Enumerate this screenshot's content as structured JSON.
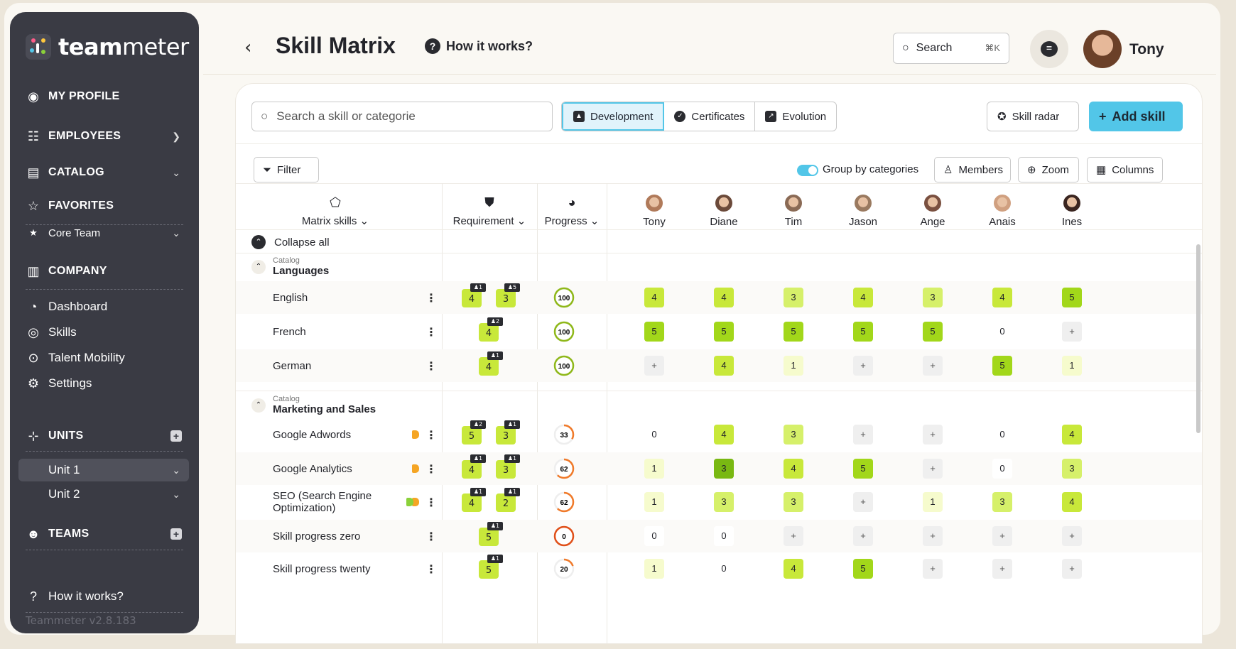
{
  "brand": {
    "name_bold": "team",
    "name_light": "meter",
    "version": "Teammeter v2.8.183"
  },
  "sidebar": {
    "my_profile": "MY PROFILE",
    "employees": "EMPLOYEES",
    "catalog": "CATALOG",
    "favorites": "FAVORITES",
    "core_team": "Core Team",
    "company": "COMPANY",
    "dashboard": "Dashboard",
    "skills": "Skills",
    "talent_mobility": "Talent Mobility",
    "settings": "Settings",
    "units": "UNITS",
    "unit1": "Unit 1",
    "unit2": "Unit 2",
    "teams": "TEAMS",
    "how_it_works": "How it works?"
  },
  "header": {
    "title": "Skill Matrix",
    "help": "How it works?",
    "search": "Search",
    "shortcut": "⌘K",
    "user": "Tony"
  },
  "toolbar": {
    "search_placeholder": "Search a skill or categorie",
    "tab_development": "Development",
    "tab_certificates": "Certificates",
    "tab_evolution": "Evolution",
    "skill_radar": "Skill radar",
    "add_skill": "Add skill"
  },
  "subtoolbar": {
    "filter": "Filter",
    "group_by": "Group by categories",
    "members": "Members",
    "zoom": "Zoom",
    "columns": "Columns"
  },
  "columns": {
    "matrix_skills": "Matrix skills",
    "requirement": "Requirement",
    "progress": "Progress",
    "people": [
      "Tony",
      "Diane",
      "Tim",
      "Jason",
      "Ange",
      "Anais",
      "Ines"
    ]
  },
  "collapse_all": "Collapse all",
  "categories": [
    {
      "label": "Catalog",
      "name": "Languages"
    },
    {
      "label": "Catalog",
      "name": "Marketing and Sales"
    }
  ],
  "skills": [
    {
      "name": "English",
      "reqs": [
        [
          "4",
          "1"
        ],
        [
          "3",
          "5"
        ]
      ],
      "progress": "100",
      "cells": [
        "4",
        "4",
        "3",
        "4",
        "3",
        "4",
        "5"
      ]
    },
    {
      "name": "French",
      "reqs": [
        [
          "4",
          "2"
        ]
      ],
      "progress": "100",
      "cells": [
        "5",
        "5",
        "5",
        "5",
        "5",
        "0",
        "+"
      ]
    },
    {
      "name": "German",
      "reqs": [
        [
          "4",
          "1"
        ]
      ],
      "progress": "100",
      "cells": [
        "+",
        "4",
        "1",
        "+",
        "+",
        "5",
        "1"
      ]
    },
    {
      "name": "Google Adwords",
      "reqs": [
        [
          "5",
          "2"
        ],
        [
          "3",
          "1"
        ]
      ],
      "progress": "33",
      "cells": [
        "0",
        "4",
        "3",
        "+",
        "+",
        "0",
        "4"
      ]
    },
    {
      "name": "Google Analytics",
      "reqs": [
        [
          "4",
          "1"
        ],
        [
          "3",
          "1"
        ]
      ],
      "progress": "62",
      "cells": [
        "1",
        "3",
        "4",
        "5",
        "+",
        "0",
        "3"
      ]
    },
    {
      "name": "SEO (Search Engine Optimization)",
      "reqs": [
        [
          "4",
          "1"
        ],
        [
          "2",
          "1"
        ]
      ],
      "progress": "62",
      "cells": [
        "1",
        "3",
        "3",
        "+",
        "1",
        "3",
        "4"
      ]
    },
    {
      "name": "Skill progress zero",
      "reqs": [
        [
          "5",
          "1"
        ]
      ],
      "progress": "0",
      "cells": [
        "0",
        "0",
        "+",
        "+",
        "+",
        "+",
        "+"
      ]
    },
    {
      "name": "Skill progress twenty",
      "reqs": [
        [
          "5",
          "1"
        ]
      ],
      "progress": "20",
      "cells": [
        "1",
        "0",
        "4",
        "5",
        "+",
        "+",
        "+"
      ]
    }
  ],
  "colors": {
    "accent": "#52c6e8",
    "sidebar": "#3a3b44",
    "level5": "#a2d71a",
    "level4": "#c8e83a",
    "level3": "#d6f06a"
  }
}
